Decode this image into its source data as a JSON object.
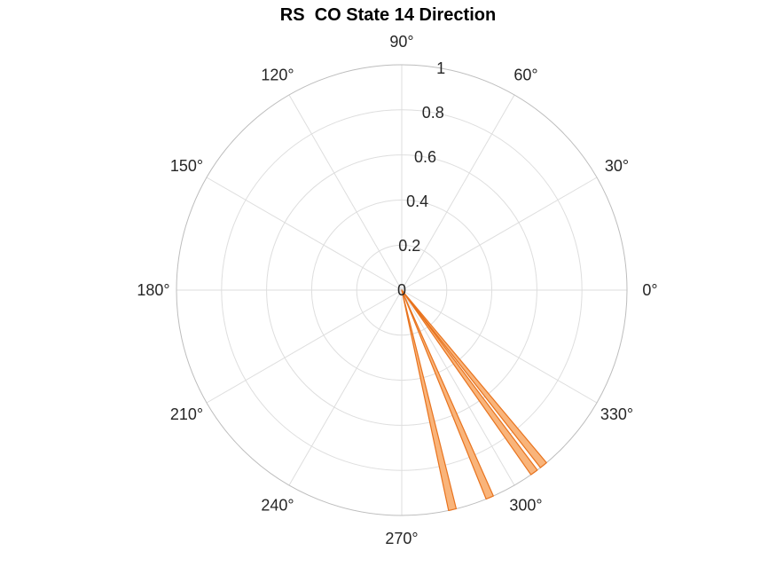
{
  "chart_data": {
    "type": "polar-histogram",
    "title": "RS  CO State 14 Direction",
    "r_ticks": [
      0,
      0.2,
      0.4,
      0.6,
      0.8,
      1
    ],
    "rlim": [
      0,
      1
    ],
    "theta_ticks": [
      0,
      30,
      60,
      90,
      120,
      150,
      180,
      210,
      240,
      270,
      300,
      330
    ],
    "theta_tick_labels": [
      "0°",
      "30°",
      "60°",
      "90°",
      "120°",
      "150°",
      "180°",
      "210°",
      "240°",
      "270°",
      "300°",
      "330°"
    ],
    "grid": true,
    "bars": [
      {
        "theta_start": 282,
        "theta_end": 284,
        "r": 1.0
      },
      {
        "theta_start": 292,
        "theta_end": 294,
        "r": 1.0
      },
      {
        "theta_start": 305,
        "theta_end": 307,
        "r": 1.0
      },
      {
        "theta_start": 308,
        "theta_end": 310,
        "r": 1.0
      }
    ],
    "colors": {
      "bar_fill": "#F9B47A",
      "bar_edge": "#E8731E",
      "grid": "#DEDEDE",
      "outline": "#BDBDBD",
      "text": "#262626"
    }
  }
}
